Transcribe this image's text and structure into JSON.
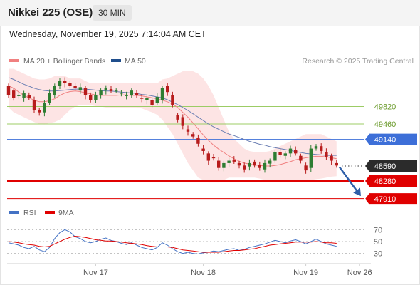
{
  "header": {
    "symbol": "Nikkei 225 (OSE)",
    "interval": "30 MIN",
    "datetime": "Wednesday, November 19, 2025 7:14:04 AM CET",
    "credit": "Research © 2025 Trading Central"
  },
  "colors": {
    "up": "#2e7d32",
    "down": "#b71c1c",
    "ma20": "#f08080",
    "band": "#fde4e4",
    "ma50": "#6b7fb3",
    "resistance": "#9ccc65",
    "pivot": "#3d6fd8",
    "support": "#e00000",
    "last": "#222222",
    "rsi": "#4472c4",
    "rsi_ma": "#e00000"
  },
  "chart_data": [
    {
      "type": "candlestick",
      "legend": [
        {
          "label": "MA 20 + Bollinger Bands",
          "color": "#f08080"
        },
        {
          "label": "MA 50",
          "color": "#1f4e8c"
        }
      ],
      "x_ticks": [
        "Nov 17",
        "Nov 18",
        "Nov 19",
        "Nov 26"
      ],
      "ylim": [
        47750,
        50550
      ],
      "levels": [
        {
          "value": 49820,
          "label": "49820",
          "kind": "resistance"
        },
        {
          "value": 49460,
          "label": "49460",
          "kind": "resistance"
        },
        {
          "value": 49140,
          "label": "49140",
          "kind": "pivot"
        },
        {
          "value": 48590,
          "label": "48590",
          "kind": "last"
        },
        {
          "value": 48280,
          "label": "48280",
          "kind": "support"
        },
        {
          "value": 47910,
          "label": "47910",
          "kind": "support"
        }
      ],
      "price_path": [
        [
          50250,
          50050
        ],
        [
          50150,
          50000
        ],
        [
          50050,
          50050
        ],
        [
          50000,
          50100
        ],
        [
          50050,
          50000
        ],
        [
          49950,
          49750
        ],
        [
          49750,
          49700
        ],
        [
          49700,
          49900
        ],
        [
          49900,
          50100
        ],
        [
          50050,
          50250
        ],
        [
          50250,
          50350
        ],
        [
          50350,
          50300
        ],
        [
          50300,
          50250
        ],
        [
          50250,
          50200
        ],
        [
          50150,
          50220
        ],
        [
          50200,
          50050
        ],
        [
          50050,
          49950
        ],
        [
          49950,
          50050
        ],
        [
          50050,
          50150
        ],
        [
          50150,
          50200
        ],
        [
          50180,
          50140
        ],
        [
          50150,
          50150
        ],
        [
          50100,
          50100
        ],
        [
          50050,
          50050
        ],
        [
          50050,
          50150
        ],
        [
          50100,
          50050
        ],
        [
          50000,
          49980
        ],
        [
          49950,
          50000
        ],
        [
          49950,
          49850
        ],
        [
          49900,
          50020
        ],
        [
          49950,
          50200
        ],
        [
          50250,
          50120
        ],
        [
          50050,
          49850
        ],
        [
          49650,
          49550
        ],
        [
          49600,
          49420
        ],
        [
          49350,
          49300
        ],
        [
          49250,
          49200
        ],
        [
          49180,
          49050
        ],
        [
          48950,
          48900
        ],
        [
          48850,
          48700
        ],
        [
          48780,
          48750
        ],
        [
          48700,
          48550
        ],
        [
          48550,
          48650
        ],
        [
          48650,
          48700
        ],
        [
          48720,
          48680
        ],
        [
          48650,
          48600
        ],
        [
          48600,
          48520
        ],
        [
          48580,
          48650
        ],
        [
          48680,
          48600
        ],
        [
          48620,
          48550
        ],
        [
          48520,
          48650
        ],
        [
          48640,
          48700
        ],
        [
          48700,
          48870
        ],
        [
          48880,
          48820
        ],
        [
          48800,
          48850
        ],
        [
          48850,
          48950
        ],
        [
          48920,
          48850
        ],
        [
          48800,
          48700
        ],
        [
          48600,
          48500
        ],
        [
          48550,
          48950
        ],
        [
          48950,
          49000
        ],
        [
          49000,
          48900
        ],
        [
          48880,
          48780
        ],
        [
          48800,
          48700
        ],
        [
          48650,
          48600
        ]
      ],
      "ma20_path": [
        50250,
        50200,
        50120,
        50050,
        50000,
        49950,
        49920,
        49920,
        49940,
        49980,
        50050,
        50100,
        50130,
        50140,
        50130,
        50100,
        50080,
        50060,
        50050,
        50050,
        50050,
        50050,
        50060,
        50060,
        50050,
        50050,
        50040,
        50020,
        50000,
        49980,
        49950,
        49920,
        49870,
        49800,
        49700,
        49600,
        49480,
        49360,
        49230,
        49120,
        49020,
        48940,
        48870,
        48800,
        48740,
        48690,
        48650,
        48630,
        48610,
        48600,
        48590,
        48590,
        48600,
        48620,
        48650,
        48680,
        48720,
        48740,
        48760,
        48780,
        48790,
        48790,
        48780,
        48760,
        48740
      ],
      "bb_upper_path": [
        50600,
        50600,
        50550,
        50500,
        50450,
        50400,
        50380,
        50380,
        50400,
        50450,
        50450,
        50450,
        50400,
        50400,
        50400,
        50350,
        50300,
        50300,
        50300,
        50300,
        50300,
        50300,
        50300,
        50300,
        50300,
        50300,
        50300,
        50300,
        50300,
        50300,
        50380,
        50400,
        50450,
        50500,
        50550,
        50550,
        50550,
        50500,
        50400,
        50250,
        50050,
        49800,
        49550,
        49300,
        49150,
        49050,
        48950,
        48900,
        48880,
        48880,
        48880,
        48900,
        48950,
        49000,
        49050,
        49100,
        49150,
        49200,
        49250,
        49250,
        49250,
        49250,
        49200,
        49150,
        49100
      ],
      "bb_lower_path": [
        49800,
        49700,
        49650,
        49600,
        49550,
        49500,
        49460,
        49450,
        49480,
        49500,
        49550,
        49650,
        49750,
        49820,
        49850,
        49850,
        49850,
        49830,
        49820,
        49800,
        49800,
        49800,
        49800,
        49800,
        49800,
        49800,
        49780,
        49740,
        49700,
        49650,
        49550,
        49400,
        49250,
        49050,
        48850,
        48650,
        48500,
        48350,
        48300,
        48250,
        48250,
        48250,
        48300,
        48350,
        48350,
        48350,
        48350,
        48350,
        48350,
        48330,
        48300,
        48290,
        48270,
        48260,
        48260,
        48270,
        48280,
        48280,
        48280,
        48300,
        48320,
        48330,
        48350,
        48370,
        48380
      ],
      "ma50_path": [
        50420,
        50380,
        50330,
        50280,
        50240,
        50200,
        50170,
        50150,
        50140,
        50140,
        50150,
        50160,
        50170,
        50180,
        50180,
        50180,
        50170,
        50160,
        50150,
        50140,
        50140,
        50130,
        50120,
        50110,
        50100,
        50090,
        50070,
        50060,
        50040,
        50020,
        50000,
        49960,
        49910,
        49860,
        49800,
        49740,
        49670,
        49600,
        49530,
        49460,
        49400,
        49350,
        49300,
        49250,
        49220,
        49180,
        49140,
        49100,
        49070,
        49040,
        49020,
        48990,
        48970,
        48950,
        48930,
        48910,
        48890,
        48870,
        48850,
        48840,
        48830,
        48820,
        48810,
        48810,
        48810
      ]
    },
    {
      "type": "line",
      "legend": [
        {
          "label": "RSI",
          "color": "#4472c4"
        },
        {
          "label": "9MA",
          "color": "#e00000"
        }
      ],
      "ylim": [
        20,
        80
      ],
      "y_ticks": [
        70,
        50,
        30
      ],
      "series": [
        {
          "name": "RSI",
          "values": [
            48,
            46,
            44,
            40,
            38,
            42,
            36,
            33,
            40,
            55,
            65,
            70,
            66,
            58,
            55,
            50,
            48,
            50,
            54,
            56,
            52,
            50,
            47,
            45,
            48,
            44,
            40,
            38,
            36,
            40,
            48,
            44,
            38,
            33,
            30,
            32,
            30,
            29,
            31,
            32,
            34,
            33,
            35,
            37,
            38,
            35,
            37,
            40,
            42,
            44,
            46,
            49,
            52,
            50,
            48,
            51,
            53,
            50,
            46,
            50,
            54,
            50,
            46,
            44,
            42
          ]
        },
        {
          "name": "9MA",
          "values": [
            50,
            49,
            48,
            46,
            45,
            44,
            42,
            41,
            42,
            46,
            50,
            54,
            57,
            59,
            58,
            57,
            55,
            53,
            52,
            51,
            51,
            50,
            49,
            48,
            47,
            46,
            45,
            43,
            42,
            41,
            41,
            41,
            40,
            38,
            36,
            35,
            34,
            33,
            32,
            32,
            32,
            32,
            33,
            34,
            35,
            35,
            36,
            37,
            38,
            40,
            42,
            44,
            45,
            46,
            47,
            48,
            49,
            49,
            49,
            49,
            50,
            49,
            48,
            48,
            47
          ]
        }
      ]
    }
  ]
}
